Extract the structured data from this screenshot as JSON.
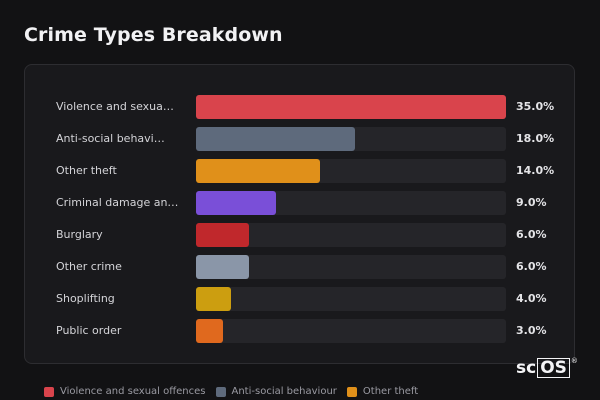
{
  "header": {
    "title": "Crime Types Breakdown"
  },
  "chart_data": {
    "type": "bar",
    "orientation": "horizontal",
    "title": "Crime Types Breakdown",
    "xlim": [
      0,
      35
    ],
    "categories": [
      {
        "label": "Violence and sexua…",
        "value": 35.0,
        "display": "35.0%",
        "color": "#d9444c"
      },
      {
        "label": "Anti-social behavi…",
        "value": 18.0,
        "display": "18.0%",
        "color": "#5e6a7c"
      },
      {
        "label": "Other theft",
        "value": 14.0,
        "display": "14.0%",
        "color": "#e0901a"
      },
      {
        "label": "Criminal damage an…",
        "value": 9.0,
        "display": "9.0%",
        "color": "#7a4fd8"
      },
      {
        "label": "Burglary",
        "value": 6.0,
        "display": "6.0%",
        "color": "#c0282c"
      },
      {
        "label": "Other crime",
        "value": 6.0,
        "display": "6.0%",
        "color": "#8a96a8"
      },
      {
        "label": "Shoplifting",
        "value": 4.0,
        "display": "4.0%",
        "color": "#cc9e10"
      },
      {
        "label": "Public order",
        "value": 3.0,
        "display": "3.0%",
        "color": "#e0691e"
      }
    ],
    "legend": [
      {
        "label": "Violence and sexual offences",
        "color": "#d9444c"
      },
      {
        "label": "Anti-social behaviour",
        "color": "#5e6a7c"
      },
      {
        "label": "Other theft",
        "color": "#e0901a"
      }
    ],
    "legend_position": "bottom"
  },
  "watermark": {
    "text_a": "sc",
    "text_b": "OS",
    "reg": "®"
  }
}
